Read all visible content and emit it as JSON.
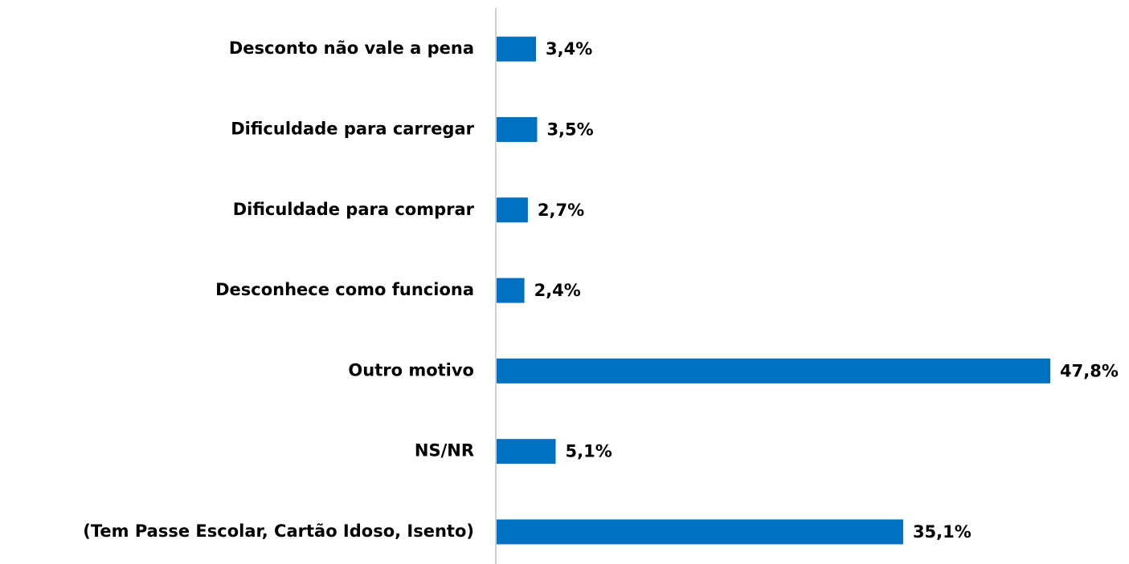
{
  "chart_data": {
    "type": "bar",
    "orientation": "horizontal",
    "categories": [
      "Desconto não vale a pena",
      "Dificuldade para carregar",
      "Dificuldade para comprar",
      "Desconhece como funciona",
      "Outro motivo",
      "NS/NR",
      "(Tem Passe Escolar, Cartão Idoso, Isento)"
    ],
    "values": [
      3.4,
      3.5,
      2.7,
      2.4,
      47.8,
      5.1,
      35.1
    ],
    "value_labels": [
      "3,4%",
      "3,5%",
      "2,7%",
      "2,4%",
      "47,8%",
      "5,1%",
      "35,1%"
    ],
    "color": "#0070c0"
  }
}
